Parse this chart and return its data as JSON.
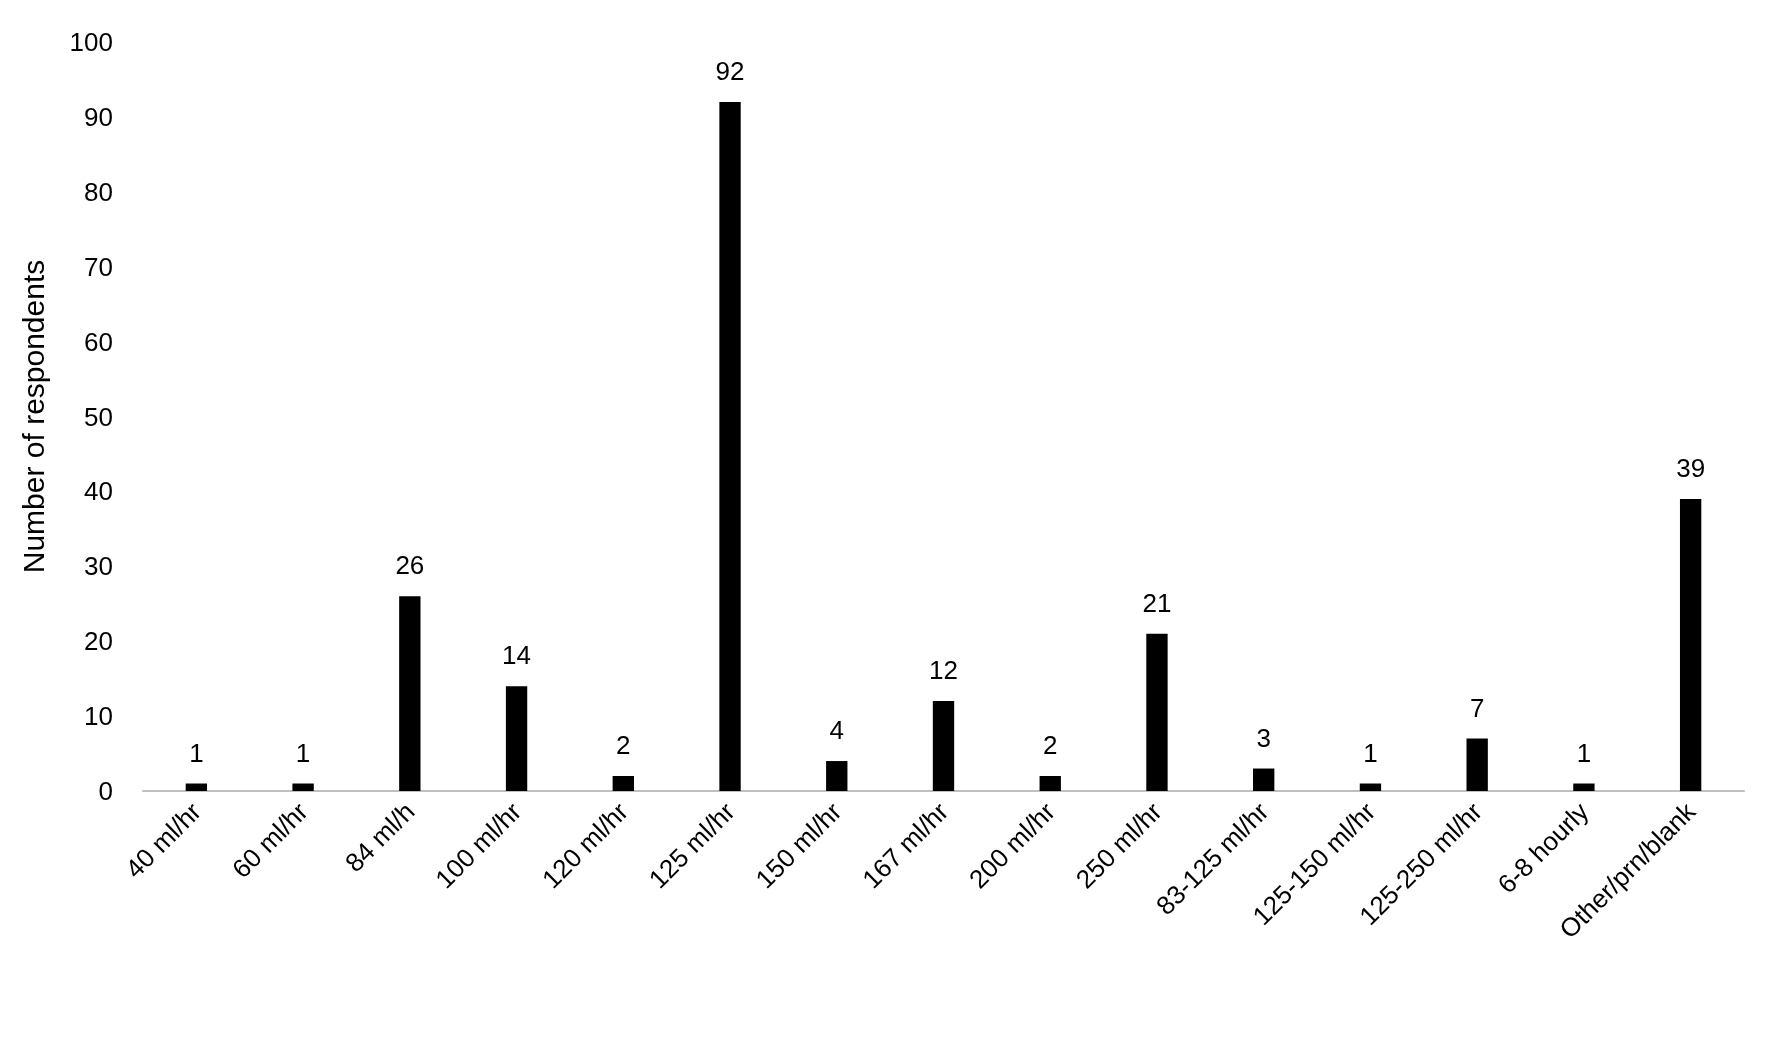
{
  "chart_data": {
    "type": "bar",
    "ylabel": "Number of respondents",
    "categories": [
      "40 ml/hr",
      "60 ml/hr",
      "84 ml/h",
      "100 ml/hr",
      "120 ml/hr",
      "125 ml/hr",
      "150 ml/hr",
      "167 ml/hr",
      "200 ml/hr",
      "250 ml/hr",
      "83-125 ml/hr",
      "125-150 ml/hr",
      "125-250 ml/hr",
      "6-8 hourly",
      "Other/prn/blank"
    ],
    "values": [
      1,
      1,
      26,
      14,
      2,
      92,
      4,
      12,
      2,
      21,
      3,
      1,
      7,
      1,
      39
    ],
    "color": "#000000",
    "ylim": [
      0,
      100
    ],
    "yticks": [
      0,
      10,
      20,
      30,
      40,
      50,
      60,
      70,
      80,
      90,
      100
    ],
    "grid": false,
    "data_labels": true
  }
}
